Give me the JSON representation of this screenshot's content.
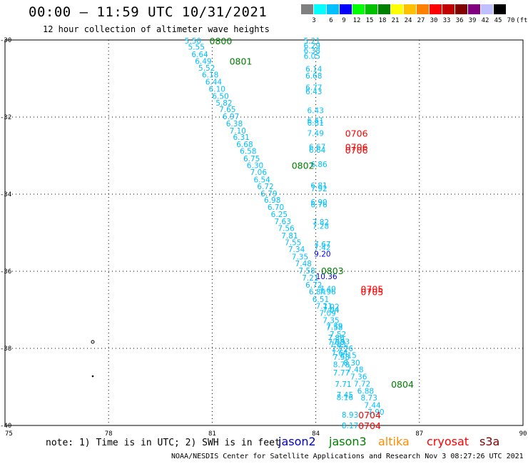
{
  "title": "00:00 – 11:59 UTC 10/31/2021",
  "subtitle": "12 hour collection of altimeter wave heights",
  "legend": {
    "labels": [
      "3",
      "6",
      "9",
      "12",
      "15",
      "18",
      "21",
      "24",
      "27",
      "30",
      "33",
      "36",
      "39",
      "42",
      "45",
      "70",
      "(ft)"
    ],
    "colors": [
      "#808080",
      "#00ffff",
      "#00c0ff",
      "#0000ff",
      "#00ff00",
      "#00c000",
      "#008000",
      "#ffff00",
      "#ffc000",
      "#ff8000",
      "#ff0000",
      "#c00000",
      "#800000",
      "#800080",
      "#c0c0ff",
      "#000000"
    ]
  },
  "map": {
    "lon_ticks": [
      "75",
      "78",
      "81",
      "84",
      "87",
      "90"
    ],
    "lat_ticks": [
      "-30",
      "-32",
      "-34",
      "-36",
      "-38",
      "-40"
    ],
    "lon_range": [
      75,
      90
    ],
    "lat_range": [
      -30,
      -40
    ],
    "grid": "dotted"
  },
  "observations": [
    {
      "lon": 80.2,
      "lat": -30.02,
      "text": "5.50",
      "color": "#00c0ff"
    },
    {
      "lon": 80.3,
      "lat": -30.18,
      "text": "5.55",
      "color": "#00c0ff"
    },
    {
      "lon": 80.4,
      "lat": -30.37,
      "text": "6.64",
      "color": "#00c0ff"
    },
    {
      "lon": 80.5,
      "lat": -30.55,
      "text": "6.49",
      "color": "#00c0ff"
    },
    {
      "lon": 80.6,
      "lat": -30.72,
      "text": "5.52",
      "color": "#00c0ff"
    },
    {
      "lon": 80.7,
      "lat": -30.9,
      "text": "6.18",
      "color": "#00c0ff"
    },
    {
      "lon": 80.8,
      "lat": -31.08,
      "text": "6.44",
      "color": "#00c0ff"
    },
    {
      "lon": 80.9,
      "lat": -31.27,
      "text": "6.10",
      "color": "#00c0ff"
    },
    {
      "lon": 81.0,
      "lat": -31.45,
      "text": "6.50",
      "color": "#00c0ff"
    },
    {
      "lon": 81.1,
      "lat": -31.63,
      "text": "5.82",
      "color": "#00c0ff"
    },
    {
      "lon": 81.2,
      "lat": -31.8,
      "text": "7.65",
      "color": "#00c0ff"
    },
    {
      "lon": 81.3,
      "lat": -31.98,
      "text": "6.97",
      "color": "#00c0ff"
    },
    {
      "lon": 81.4,
      "lat": -32.17,
      "text": "6.38",
      "color": "#00c0ff"
    },
    {
      "lon": 81.5,
      "lat": -32.35,
      "text": "7.10",
      "color": "#00c0ff"
    },
    {
      "lon": 81.6,
      "lat": -32.52,
      "text": "6.31",
      "color": "#00c0ff"
    },
    {
      "lon": 81.7,
      "lat": -32.7,
      "text": "6.68",
      "color": "#00c0ff"
    },
    {
      "lon": 81.8,
      "lat": -32.88,
      "text": "6.58",
      "color": "#00c0ff"
    },
    {
      "lon": 81.9,
      "lat": -33.07,
      "text": "6.75",
      "color": "#00c0ff"
    },
    {
      "lon": 82.0,
      "lat": -33.25,
      "text": "6.30",
      "color": "#00c0ff"
    },
    {
      "lon": 82.1,
      "lat": -33.43,
      "text": "7.06",
      "color": "#00c0ff"
    },
    {
      "lon": 82.2,
      "lat": -33.62,
      "text": "6.54",
      "color": "#00c0ff"
    },
    {
      "lon": 82.3,
      "lat": -33.8,
      "text": "6.72",
      "color": "#00c0ff"
    },
    {
      "lon": 82.4,
      "lat": -33.98,
      "text": "6.79",
      "color": "#00c0ff"
    },
    {
      "lon": 82.5,
      "lat": -34.15,
      "text": "6.98",
      "color": "#00c0ff"
    },
    {
      "lon": 82.6,
      "lat": -34.33,
      "text": "6.70",
      "color": "#00c0ff"
    },
    {
      "lon": 82.7,
      "lat": -34.52,
      "text": "6.25",
      "color": "#00c0ff"
    },
    {
      "lon": 82.8,
      "lat": -34.7,
      "text": "7.63",
      "color": "#00c0ff"
    },
    {
      "lon": 82.9,
      "lat": -34.88,
      "text": "7.56",
      "color": "#00c0ff"
    },
    {
      "lon": 83.0,
      "lat": -35.07,
      "text": "7.81",
      "color": "#00c0ff"
    },
    {
      "lon": 83.1,
      "lat": -35.25,
      "text": "7.55",
      "color": "#00c0ff"
    },
    {
      "lon": 83.2,
      "lat": -35.43,
      "text": "7.34",
      "color": "#00c0ff"
    },
    {
      "lon": 83.3,
      "lat": -35.62,
      "text": "7.35",
      "color": "#00c0ff"
    },
    {
      "lon": 83.4,
      "lat": -35.8,
      "text": "7.48",
      "color": "#00c0ff"
    },
    {
      "lon": 83.5,
      "lat": -35.98,
      "text": "7.58",
      "color": "#00c0ff"
    },
    {
      "lon": 83.6,
      "lat": -36.17,
      "text": "7.21",
      "color": "#00c0ff"
    },
    {
      "lon": 83.7,
      "lat": -36.35,
      "text": "6.72",
      "color": "#00c0ff"
    },
    {
      "lon": 83.8,
      "lat": -36.53,
      "text": "6.84",
      "color": "#00c0ff"
    },
    {
      "lon": 83.9,
      "lat": -36.72,
      "text": "6.51",
      "color": "#00c0ff"
    },
    {
      "lon": 84.0,
      "lat": -36.9,
      "text": "7.11",
      "color": "#00c0ff"
    },
    {
      "lon": 84.1,
      "lat": -37.08,
      "text": "7.09",
      "color": "#00c0ff"
    },
    {
      "lon": 84.2,
      "lat": -37.27,
      "text": "7.35",
      "color": "#00c0ff"
    },
    {
      "lon": 84.3,
      "lat": -37.45,
      "text": "7.58",
      "color": "#00c0ff"
    },
    {
      "lon": 84.4,
      "lat": -37.63,
      "text": "7.52",
      "color": "#00c0ff"
    },
    {
      "lon": 84.5,
      "lat": -37.82,
      "text": "7.93",
      "color": "#00c0ff"
    },
    {
      "lon": 84.6,
      "lat": -38.0,
      "text": "7.76",
      "color": "#00c0ff"
    },
    {
      "lon": 84.7,
      "lat": -38.18,
      "text": "8.15",
      "color": "#00c0ff"
    },
    {
      "lon": 84.8,
      "lat": -38.37,
      "text": "8.30",
      "color": "#00c0ff"
    },
    {
      "lon": 84.9,
      "lat": -38.55,
      "text": "7.48",
      "color": "#00c0ff"
    },
    {
      "lon": 85.0,
      "lat": -38.73,
      "text": "7.36",
      "color": "#00c0ff"
    },
    {
      "lon": 85.1,
      "lat": -38.92,
      "text": "7.72",
      "color": "#00c0ff"
    },
    {
      "lon": 85.2,
      "lat": -39.1,
      "text": "6.88",
      "color": "#00c0ff"
    },
    {
      "lon": 85.3,
      "lat": -39.28,
      "text": "8.73",
      "color": "#00c0ff"
    },
    {
      "lon": 85.4,
      "lat": -39.47,
      "text": "7.44",
      "color": "#00c0ff"
    },
    {
      "lon": 85.5,
      "lat": -39.65,
      "text": "7.90",
      "color": "#00c0ff"
    },
    {
      "lon": 83.65,
      "lat": -30.02,
      "text": "5.21",
      "color": "#00c0ff"
    },
    {
      "lon": 83.65,
      "lat": -30.15,
      "text": "6.29",
      "color": "#00c0ff"
    },
    {
      "lon": 83.65,
      "lat": -30.27,
      "text": "6.38",
      "color": "#00c0ff"
    },
    {
      "lon": 83.65,
      "lat": -30.42,
      "text": "6.05",
      "color": "#00c0ff"
    },
    {
      "lon": 83.7,
      "lat": -30.75,
      "text": "6.14",
      "color": "#00c0ff"
    },
    {
      "lon": 83.7,
      "lat": -30.93,
      "text": "6.68",
      "color": "#00c0ff"
    },
    {
      "lon": 83.7,
      "lat": -31.23,
      "text": "6.77",
      "color": "#00c0ff"
    },
    {
      "lon": 83.7,
      "lat": -31.33,
      "text": "6.43",
      "color": "#00c0ff"
    },
    {
      "lon": 83.75,
      "lat": -31.82,
      "text": "6.43",
      "color": "#00c0ff"
    },
    {
      "lon": 83.75,
      "lat": -32.08,
      "text": "6.41",
      "color": "#00c0ff"
    },
    {
      "lon": 83.75,
      "lat": -32.15,
      "text": "6.81",
      "color": "#00c0ff"
    },
    {
      "lon": 83.75,
      "lat": -32.42,
      "text": "7.49",
      "color": "#00c0ff"
    },
    {
      "lon": 83.8,
      "lat": -32.77,
      "text": "6.67",
      "color": "#00c0ff"
    },
    {
      "lon": 83.8,
      "lat": -32.85,
      "text": "6.64",
      "color": "#00c0ff"
    },
    {
      "lon": 83.85,
      "lat": -33.22,
      "text": "6.86",
      "color": "#00c0ff"
    },
    {
      "lon": 83.85,
      "lat": -33.77,
      "text": "6.81",
      "color": "#00c0ff"
    },
    {
      "lon": 83.85,
      "lat": -33.85,
      "text": "7.92",
      "color": "#00c0ff"
    },
    {
      "lon": 83.85,
      "lat": -34.2,
      "text": "6.90",
      "color": "#00c0ff"
    },
    {
      "lon": 83.85,
      "lat": -34.27,
      "text": "6.76",
      "color": "#00c0ff"
    },
    {
      "lon": 83.9,
      "lat": -34.72,
      "text": "7.82",
      "color": "#00c0ff"
    },
    {
      "lon": 83.9,
      "lat": -34.82,
      "text": "7.28",
      "color": "#00c0ff"
    },
    {
      "lon": 83.95,
      "lat": -35.3,
      "text": "7.67",
      "color": "#00c0ff"
    },
    {
      "lon": 83.95,
      "lat": -35.38,
      "text": "7.42",
      "color": "#00c0ff"
    },
    {
      "lon": 83.95,
      "lat": -35.55,
      "text": "9.20",
      "color": "#0000ff"
    },
    {
      "lon": 84.0,
      "lat": -36.13,
      "text": "10.36",
      "color": "#0000ff"
    },
    {
      "lon": 84.1,
      "lat": -36.45,
      "text": "7.40",
      "color": "#00c0ff"
    },
    {
      "lon": 84.1,
      "lat": -36.53,
      "text": "7.96",
      "color": "#00c0ff"
    },
    {
      "lon": 84.2,
      "lat": -36.92,
      "text": "7.02",
      "color": "#00c0ff"
    },
    {
      "lon": 84.2,
      "lat": -37.0,
      "text": "7.04",
      "color": "#00c0ff"
    },
    {
      "lon": 84.3,
      "lat": -37.42,
      "text": "7.39",
      "color": "#00c0ff"
    },
    {
      "lon": 84.35,
      "lat": -37.72,
      "text": "7.86",
      "color": "#00c0ff"
    },
    {
      "lon": 84.35,
      "lat": -37.83,
      "text": "7.88",
      "color": "#00c0ff"
    },
    {
      "lon": 84.4,
      "lat": -37.9,
      "text": "7.83",
      "color": "#00c0ff"
    },
    {
      "lon": 84.45,
      "lat": -38.02,
      "text": "7.72",
      "color": "#00c0ff"
    },
    {
      "lon": 84.45,
      "lat": -38.12,
      "text": "7.64",
      "color": "#00c0ff"
    },
    {
      "lon": 84.5,
      "lat": -38.22,
      "text": "7.58",
      "color": "#00c0ff"
    },
    {
      "lon": 84.5,
      "lat": -38.42,
      "text": "8.78",
      "color": "#00c0ff"
    },
    {
      "lon": 84.5,
      "lat": -38.63,
      "text": "7.77",
      "color": "#00c0ff"
    },
    {
      "lon": 84.55,
      "lat": -38.93,
      "text": "7.71",
      "color": "#00c0ff"
    },
    {
      "lon": 84.6,
      "lat": -39.2,
      "text": "7.45",
      "color": "#00c0ff"
    },
    {
      "lon": 84.6,
      "lat": -39.27,
      "text": "8.16",
      "color": "#00c0ff"
    },
    {
      "lon": 84.75,
      "lat": -39.72,
      "text": "8.93",
      "color": "#00c0ff"
    },
    {
      "lon": 84.75,
      "lat": -40.0,
      "text": "8.17",
      "color": "#00c0ff"
    }
  ],
  "time_labels": [
    {
      "lon": 80.92,
      "lat": -30.02,
      "text": "0800",
      "color": "#008000"
    },
    {
      "lon": 81.5,
      "lat": -30.55,
      "text": "0801",
      "color": "#008000"
    },
    {
      "lon": 83.3,
      "lat": -33.25,
      "text": "0802",
      "color": "#008000"
    },
    {
      "lon": 84.15,
      "lat": -35.98,
      "text": "0803",
      "color": "#008000"
    },
    {
      "lon": 86.18,
      "lat": -38.93,
      "text": "0804",
      "color": "#008000"
    },
    {
      "lon": 84.85,
      "lat": -32.42,
      "text": "0706",
      "color": "#ff0000"
    },
    {
      "lon": 84.85,
      "lat": -32.77,
      "text": "0706",
      "color": "#ff0000"
    },
    {
      "lon": 84.85,
      "lat": -32.85,
      "text": "0706",
      "color": "#ff0000"
    },
    {
      "lon": 85.3,
      "lat": -36.45,
      "text": "0705",
      "color": "#ff0000"
    },
    {
      "lon": 85.3,
      "lat": -36.53,
      "text": "0705",
      "color": "#ff0000"
    },
    {
      "lon": 85.23,
      "lat": -39.72,
      "text": "0704",
      "color": "#ff0000"
    },
    {
      "lon": 85.23,
      "lat": -40.0,
      "text": "0704",
      "color": "#ff0000"
    }
  ],
  "note": "note:  1) Time is in UTC; 2) SWH is in feet",
  "satellites": [
    {
      "name": "jason2",
      "color": "#0000c0"
    },
    {
      "name": "jason3",
      "color": "#008000"
    },
    {
      "name": "altika",
      "color": "#ff8c00"
    },
    {
      "name": "cryosat",
      "color": "#ff0000"
    },
    {
      "name": "s3a",
      "color": "#800000"
    }
  ],
  "footer": "NOAA/NESDIS Center for Satellite Applications and Research   Nov  3 08:27:26 UTC 2021"
}
